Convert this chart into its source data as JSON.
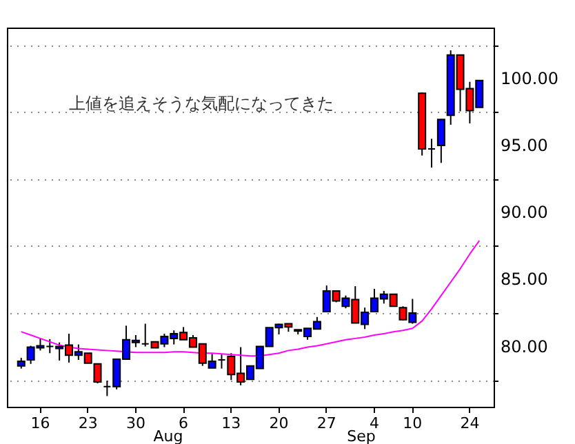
{
  "chart_data": {
    "type": "candlestick",
    "categories": [
      null,
      null,
      "16",
      null,
      null,
      null,
      null,
      "23",
      null,
      null,
      null,
      null,
      "30",
      null,
      null,
      null,
      null,
      "6",
      null,
      null,
      null,
      null,
      "13",
      null,
      null,
      null,
      null,
      "20",
      null,
      null,
      null,
      null,
      "27",
      null,
      null,
      null,
      null,
      "4",
      null,
      null,
      null,
      "10",
      null,
      null,
      null,
      null,
      null,
      "24",
      null
    ],
    "ohlc": [
      [
        78.55,
        79.15,
        78.35,
        78.9
      ],
      [
        79.0,
        80.05,
        78.7,
        79.95
      ],
      [
        79.9,
        80.6,
        79.7,
        80.05
      ],
      [
        80.0,
        80.55,
        79.5,
        80.0
      ],
      [
        79.85,
        80.3,
        78.95,
        80.0
      ],
      [
        80.1,
        80.95,
        78.8,
        79.35
      ],
      [
        79.35,
        80.15,
        79.0,
        79.6
      ],
      [
        79.5,
        79.5,
        78.75,
        78.75
      ],
      [
        78.7,
        78.7,
        77.25,
        77.35
      ],
      [
        77.0,
        77.45,
        76.3,
        77.0
      ],
      [
        77.0,
        79.05,
        76.8,
        79.05
      ],
      [
        79.05,
        81.55,
        79.05,
        80.5
      ],
      [
        80.3,
        80.85,
        79.95,
        80.45
      ],
      [
        80.2,
        81.7,
        80.0,
        80.2
      ],
      [
        80.35,
        80.35,
        79.9,
        79.9
      ],
      [
        80.2,
        80.95,
        79.95,
        80.75
      ],
      [
        80.6,
        81.2,
        80.15,
        80.95
      ],
      [
        81.05,
        81.45,
        80.5,
        80.5
      ],
      [
        80.65,
        80.85,
        79.95,
        79.95
      ],
      [
        80.2,
        80.2,
        78.55,
        78.75
      ],
      [
        78.4,
        79.45,
        78.4,
        78.9
      ],
      [
        79.0,
        79.4,
        78.35,
        79.0
      ],
      [
        79.25,
        79.5,
        77.5,
        77.9
      ],
      [
        78.0,
        79.95,
        77.1,
        77.35
      ],
      [
        77.55,
        78.55,
        77.55,
        78.55
      ],
      [
        78.35,
        80.0,
        78.35,
        80.0
      ],
      [
        80.0,
        81.4,
        80.0,
        81.4
      ],
      [
        81.4,
        81.7,
        80.9,
        81.65
      ],
      [
        81.7,
        81.7,
        81.1,
        81.45
      ],
      [
        81.15,
        81.25,
        80.9,
        81.25
      ],
      [
        80.75,
        81.35,
        80.5,
        81.35
      ],
      [
        81.3,
        82.2,
        81.3,
        81.85
      ],
      [
        82.6,
        84.55,
        82.6,
        84.15
      ],
      [
        84.15,
        84.15,
        83.3,
        83.4
      ],
      [
        83.0,
        83.8,
        82.85,
        83.6
      ],
      [
        83.5,
        84.5,
        81.75,
        81.75
      ],
      [
        81.65,
        82.9,
        81.3,
        82.55
      ],
      [
        82.6,
        84.3,
        82.6,
        83.6
      ],
      [
        83.55,
        84.15,
        83.2,
        83.9
      ],
      [
        83.9,
        83.9,
        83.0,
        83.0
      ],
      [
        82.9,
        83.0,
        81.95,
        82.0
      ],
      [
        81.8,
        83.55,
        81.7,
        82.5
      ],
      [
        98.9,
        98.95,
        94.25,
        94.75
      ],
      [
        94.75,
        95.5,
        93.35,
        94.75
      ],
      [
        95.0,
        96.95,
        93.7,
        96.95
      ],
      [
        97.25,
        102.1,
        96.55,
        101.75
      ],
      [
        101.75,
        101.75,
        97.55,
        99.2
      ],
      [
        99.25,
        99.75,
        96.65,
        97.6
      ],
      [
        97.85,
        99.85,
        97.85,
        99.85
      ]
    ],
    "colors": [
      "#0000ff",
      "#0000ff",
      "#0000ff",
      "#000000",
      "#0000ff",
      "#ff0000",
      "#0000ff",
      "#ff0000",
      "#ff0000",
      "#000000",
      "#0000ff",
      "#0000ff",
      "#0000ff",
      "#000000",
      "#ff0000",
      "#0000ff",
      "#0000ff",
      "#ff0000",
      "#ff0000",
      "#ff0000",
      "#0000ff",
      "#000000",
      "#ff0000",
      "#ff0000",
      "#0000ff",
      "#0000ff",
      "#0000ff",
      "#0000ff",
      "#ff0000",
      "#0000ff",
      "#0000ff",
      "#0000ff",
      "#0000ff",
      "#ff0000",
      "#0000ff",
      "#ff0000",
      "#0000ff",
      "#0000ff",
      "#0000ff",
      "#ff0000",
      "#ff0000",
      "#0000ff",
      "#ff0000",
      "#000000",
      "#0000ff",
      "#0000ff",
      "#ff0000",
      "#ff0000",
      "#0000ff"
    ],
    "series": [
      {
        "type": "line",
        "color": "#ff00ff",
        "values": [
          81.1,
          80.85,
          80.6,
          80.35,
          80.1,
          79.95,
          79.85,
          79.8,
          79.75,
          79.7,
          79.65,
          79.6,
          79.55,
          79.55,
          79.55,
          79.55,
          79.6,
          79.6,
          79.55,
          79.5,
          79.5,
          79.45,
          79.4,
          79.35,
          79.3,
          79.3,
          79.4,
          79.5,
          79.7,
          79.8,
          79.95,
          80.05,
          80.2,
          80.35,
          80.5,
          80.6,
          80.7,
          80.85,
          80.95,
          81.1,
          81.2,
          81.35,
          81.9,
          82.8,
          83.8,
          84.8,
          85.8,
          86.9,
          87.9
        ]
      }
    ],
    "ylim": [
      75.5,
      103.8
    ],
    "yticks": [
      {
        "value": 77.5,
        "label": null
      },
      {
        "value": 80,
        "label": "80.00"
      },
      {
        "value": 82.5,
        "label": null
      },
      {
        "value": 85,
        "label": "85.00"
      },
      {
        "value": 87.5,
        "label": null
      },
      {
        "value": 90,
        "label": "90.00"
      },
      {
        "value": 92.5,
        "label": null
      },
      {
        "value": 95,
        "label": "95.00"
      },
      {
        "value": 97.5,
        "label": null
      },
      {
        "value": 100,
        "label": "100.00"
      },
      {
        "value": 102.5,
        "label": null
      }
    ],
    "grid": "y",
    "annotations": [
      "上値を追えそうな気配になってきた",
      "Aug",
      "Sep"
    ]
  }
}
